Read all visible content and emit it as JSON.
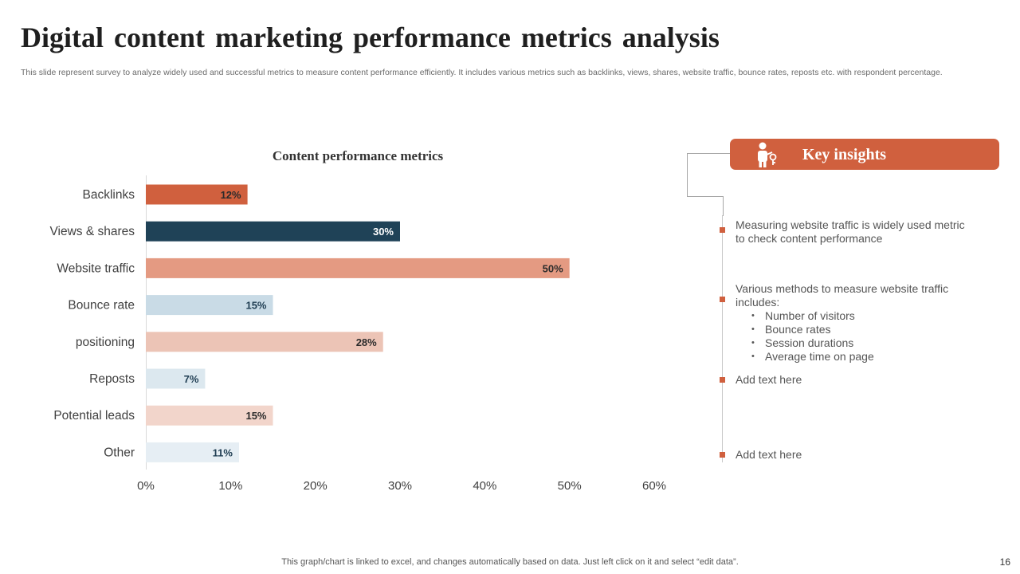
{
  "slide": {
    "title": "Digital content marketing performance metrics analysis",
    "subtitle": "This slide represent survey to analyze widely used and successful metrics to measure content performance efficiently. It includes various metrics such as backlinks, views, shares, website traffic, bounce rates, reposts etc. with respondent percentage.",
    "footer": "This graph/chart is linked to excel,  and changes automatically based on data. Just left click on it and select “edit data”.",
    "page_number": "16"
  },
  "chart_data": {
    "type": "bar",
    "orientation": "horizontal",
    "title": "Content performance metrics",
    "categories": [
      "Backlinks",
      "Views & shares",
      "Website traffic",
      "Bounce rate",
      "positioning",
      "Reposts",
      "Potential leads",
      "Other"
    ],
    "values": [
      12,
      30,
      50,
      15,
      28,
      7,
      15,
      11
    ],
    "data_labels": [
      "12%",
      "30%",
      "50%",
      "15%",
      "28%",
      "7%",
      "15%",
      "11%"
    ],
    "bar_colors": [
      "#d0603e",
      "#1f4257",
      "#e49a82",
      "#c9dbe6",
      "#ecc4b6",
      "#dce8ef",
      "#f2d5cb",
      "#e6eef4"
    ],
    "label_colors": [
      "#2b2b2b",
      "#ffffff",
      "#2b2b2b",
      "#1f3d52",
      "#2b2b2b",
      "#1f3d52",
      "#2b2b2b",
      "#1f3d52"
    ],
    "xlim": [
      0,
      60
    ],
    "x_ticks": [
      0,
      10,
      20,
      30,
      40,
      50,
      60
    ],
    "x_tick_labels": [
      "0%",
      "10%",
      "20%",
      "30%",
      "40%",
      "50%",
      "60%"
    ],
    "xlabel": "",
    "ylabel": "",
    "grid": false
  },
  "insights": {
    "header": "Key insights",
    "icon": "presenter-icon",
    "accent_color": "#d0603e",
    "items": [
      {
        "text": "Measuring website traffic is widely used metric to check content performance"
      },
      {
        "text": "Various methods to measure website traffic includes:",
        "bullets": [
          "Number of visitors",
          "Bounce rates",
          "Session durations",
          "Average time on page"
        ]
      },
      {
        "text": "Add text here"
      },
      {
        "text": "Add text here"
      }
    ]
  }
}
